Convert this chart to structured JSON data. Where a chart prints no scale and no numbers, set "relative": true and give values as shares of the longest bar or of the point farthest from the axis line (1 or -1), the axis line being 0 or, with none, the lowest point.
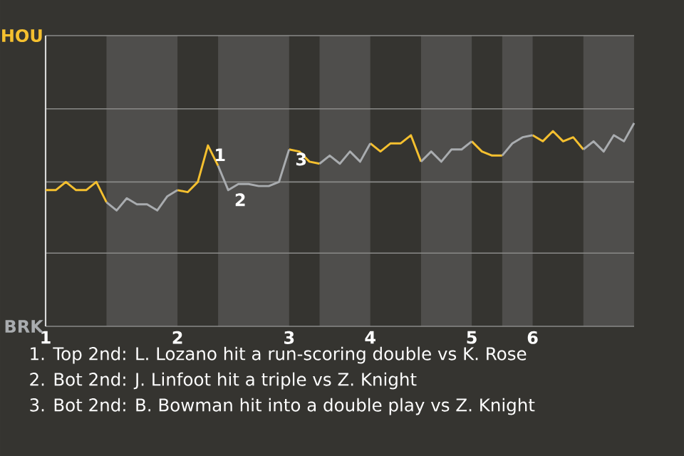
{
  "chart_data": {
    "type": "line",
    "relative": true,
    "categories": [
      "1",
      null,
      null,
      null,
      null,
      null,
      null,
      null,
      null,
      null,
      null,
      null,
      null,
      "2",
      null,
      null,
      null,
      null,
      null,
      null,
      null,
      null,
      null,
      null,
      "3",
      null,
      null,
      null,
      null,
      null,
      null,
      null,
      "4",
      null,
      null,
      null,
      null,
      null,
      null,
      null,
      null,
      null,
      "5",
      null,
      null,
      null,
      null,
      null,
      "6",
      null,
      null,
      null,
      null,
      null,
      null,
      null,
      null,
      null,
      null
    ],
    "series": [
      {
        "color": "#f5c02f",
        "values": [
          0.67,
          0.67,
          0.71,
          0.67,
          0.67,
          0.71,
          0.61,
          null,
          null,
          null,
          null,
          null,
          null,
          0.67,
          0.66,
          0.71,
          0.89,
          0.79,
          null,
          null,
          null,
          null,
          null,
          null,
          0.87,
          0.86,
          0.81,
          0.8,
          null,
          null,
          null,
          null,
          0.9,
          0.86,
          0.9,
          0.9,
          0.94,
          0.81,
          null,
          null,
          null,
          null,
          0.91,
          0.86,
          0.84,
          0.84,
          null,
          null,
          0.94,
          0.91,
          0.96,
          0.91,
          0.93,
          0.87,
          null,
          null,
          null,
          null,
          null
        ]
      },
      {
        "color": "#a9acaf",
        "values": [
          null,
          null,
          null,
          null,
          null,
          null,
          0.61,
          0.57,
          0.63,
          0.6,
          0.6,
          0.57,
          0.64,
          0.67,
          null,
          null,
          null,
          0.79,
          0.67,
          0.7,
          0.7,
          0.69,
          0.69,
          0.71,
          0.87,
          null,
          null,
          0.8,
          0.84,
          0.8,
          0.86,
          0.81,
          0.9,
          null,
          null,
          null,
          null,
          0.81,
          0.86,
          0.81,
          0.87,
          0.87,
          0.91,
          null,
          null,
          0.84,
          0.9,
          0.93,
          0.94,
          null,
          null,
          null,
          null,
          0.87,
          0.91,
          0.86,
          0.94,
          0.91,
          1
        ]
      }
    ],
    "ref_lines": [
      {
        "axis": "y",
        "value": 0.36,
        "color": "#8a8a88"
      },
      {
        "axis": "y",
        "value": 0.71,
        "color": "#8a8a88"
      },
      {
        "axis": "y",
        "value": 1.07,
        "color": "#8a8a88"
      }
    ],
    "marker": "none",
    "line_style": "solid",
    "annotations": [
      "HOU",
      "BRK",
      "1",
      "2",
      "3",
      "1. Top 2nd: L. Lozano hit a run-scoring double vs K. Rose",
      "2. Bot 2nd: J. Linfoot hit a triple vs Z. Knight",
      "3. Bot 2nd: B. Bowman hit into a double play vs Z. Knight"
    ]
  }
}
